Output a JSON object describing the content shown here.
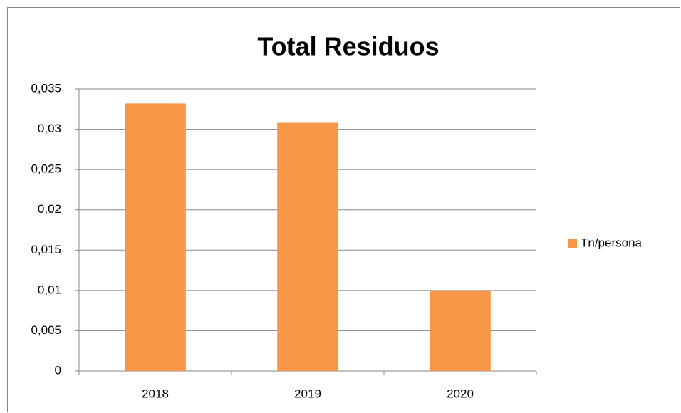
{
  "chart_data": {
    "type": "bar",
    "title": "Total Residuos",
    "categories": [
      "2018",
      "2019",
      "2020"
    ],
    "series": [
      {
        "name": "Tn/persona",
        "color": "#f79646",
        "values": [
          0.0332,
          0.0308,
          0.01
        ]
      }
    ],
    "ylim": [
      0,
      0.035
    ],
    "yticks": [
      0,
      {
        "value": 0.005,
        "label": "0,005"
      },
      {
        "value": 0.01,
        "label": "0,01"
      },
      {
        "value": 0.015,
        "label": "0,015"
      },
      {
        "value": 0.02,
        "label": "0,02"
      },
      {
        "value": 0.025,
        "label": "0,025"
      },
      {
        "value": 0.03,
        "label": "0,03"
      },
      {
        "value": 0.035,
        "label": "0,035"
      }
    ],
    "grid": true,
    "legend": "right"
  }
}
